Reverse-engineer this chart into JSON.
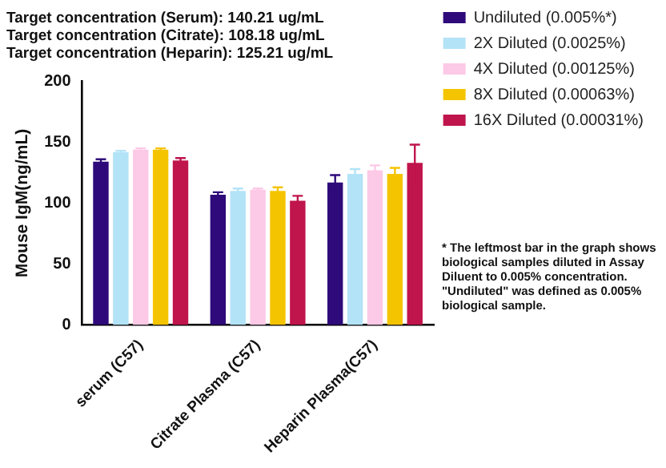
{
  "chart_data": {
    "type": "bar",
    "title": "Target concentration (Serum): 140.21 ug/mL\nTarget concentration (Citrate): 108.18 ug/mL\nTarget concentration (Heparin): 125.21 ug/mL",
    "ylabel": "Mouse IgM(ng/mL)",
    "categories": [
      "serum (C57)",
      "Citrate Plasma (C57)",
      "Heparin Plasma(C57)"
    ],
    "series": [
      {
        "name": "Undiluted (0.005%*)",
        "color": "#2e0a7a",
        "values": [
          134,
          107,
          117
        ],
        "errors": [
          2,
          2,
          6
        ]
      },
      {
        "name": "2X Diluted (0.0025%)",
        "color": "#b3e3f7",
        "values": [
          142,
          110,
          124
        ],
        "errors": [
          1,
          2,
          4
        ]
      },
      {
        "name": "4X Diluted (0.00125%)",
        "color": "#fcc9e6",
        "values": [
          144,
          111,
          127
        ],
        "errors": [
          1,
          1,
          4
        ]
      },
      {
        "name": "8X Diluted (0.00063%)",
        "color": "#f5c400",
        "values": [
          144,
          110,
          124
        ],
        "errors": [
          1,
          3,
          5
        ]
      },
      {
        "name": "16X Diluted (0.00031%)",
        "color": "#c0144c",
        "values": [
          135,
          102,
          133
        ],
        "errors": [
          2,
          4,
          15
        ]
      }
    ],
    "ylim": [
      0,
      200
    ],
    "yticks": [
      0,
      50,
      100,
      150,
      200
    ],
    "grid": false,
    "legend": "right",
    "annotations": [
      "* The leftmost bar in the graph shows biological samples diluted in Assay Diluent to 0.005% concentration. \"Undiluted\" was defined as 0.005% biological sample."
    ]
  }
}
